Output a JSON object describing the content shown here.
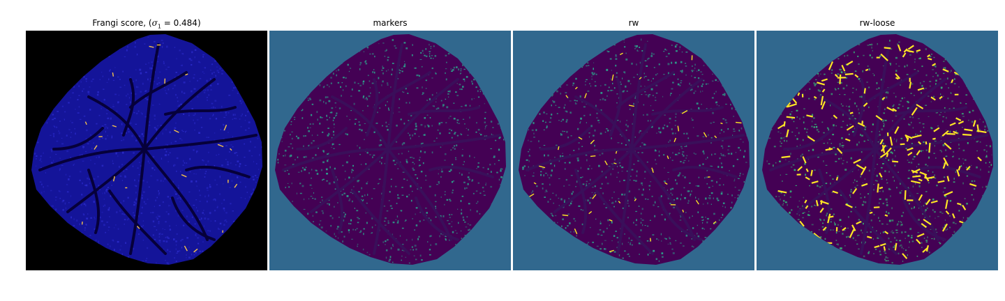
{
  "figure": {
    "panels": [
      {
        "title_prefix": "Frangi score, (",
        "title_sigma": "σ",
        "title_sub": "1",
        "title_suffix": " = 0.484)",
        "colormap": "plasma",
        "background": "#000000",
        "tissue": "#141499",
        "speckle": "#2a2ac8",
        "vessel": "#06003a",
        "highlight": "#f6c34a"
      },
      {
        "title": "markers",
        "colormap": "viridis",
        "background": "#31688e",
        "tissue": "#440154",
        "speckle": "#2ca58c",
        "vessel": "#3a0f5a"
      },
      {
        "title": "rw",
        "colormap": "viridis",
        "background": "#31688e",
        "tissue": "#440154",
        "speckle": "#2ca58c",
        "vessel": "#3a0f5a",
        "highlight": "#fde725"
      },
      {
        "title": "rw-loose",
        "colormap": "viridis",
        "background": "#31688e",
        "tissue": "#440154",
        "speckle": "#35b779",
        "vessel": "#3a0f5a",
        "highlight": "#fde725"
      }
    ]
  }
}
